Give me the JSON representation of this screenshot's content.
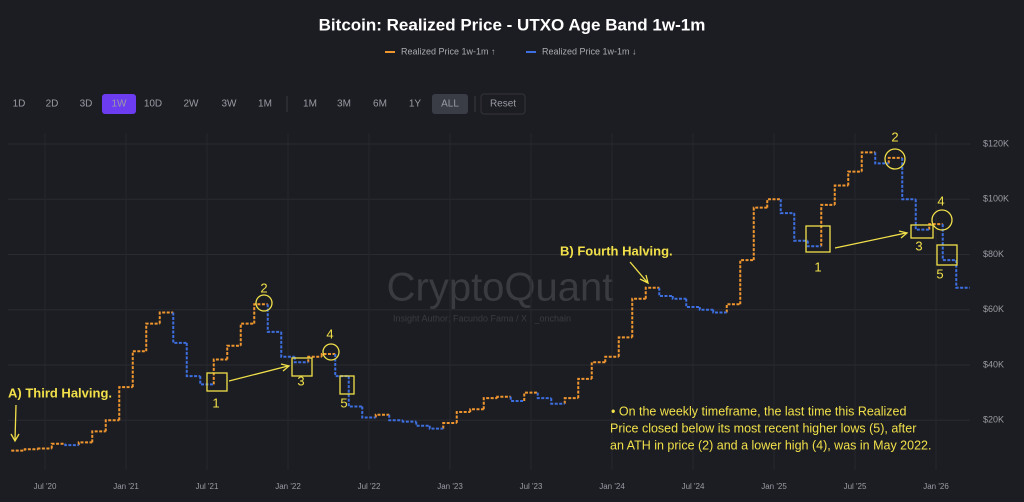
{
  "chart_data": {
    "type": "step",
    "title": "Bitcoin: Realized Price - UTXO Age Band 1w-1m",
    "watermark": "CryptoQuant",
    "author": "Insight Author: Facundo Fama / X : _onchain",
    "toolbar": {
      "intervals": [
        "1D",
        "2D",
        "3D",
        "1W",
        "10D",
        "2W",
        "3W",
        "1M"
      ],
      "ranges": [
        "1M",
        "3M",
        "6M",
        "1Y",
        "ALL"
      ],
      "reset": "Reset"
    },
    "x": [
      "2020-05",
      "2020-06",
      "2020-07",
      "2020-08",
      "2020-09",
      "2020-10",
      "2020-11",
      "2020-12",
      "2021-01",
      "2021-02",
      "2021-03",
      "2021-04",
      "2021-05",
      "2021-06",
      "2021-07",
      "2021-08",
      "2021-09",
      "2021-10",
      "2021-11",
      "2021-12",
      "2022-01",
      "2022-02",
      "2022-03",
      "2022-04",
      "2022-05",
      "2022-06",
      "2022-07",
      "2022-08",
      "2022-09",
      "2022-10",
      "2022-11",
      "2022-12",
      "2023-01",
      "2023-02",
      "2023-03",
      "2023-04",
      "2023-05",
      "2023-06",
      "2023-07",
      "2023-08",
      "2023-09",
      "2023-10",
      "2023-11",
      "2023-12",
      "2024-01",
      "2024-02",
      "2024-03",
      "2024-04",
      "2024-05",
      "2024-06",
      "2024-07",
      "2024-08",
      "2024-09",
      "2024-10",
      "2024-11",
      "2024-12",
      "2025-01",
      "2025-02",
      "2025-03",
      "2025-04",
      "2025-05",
      "2025-06",
      "2025-07",
      "2025-08",
      "2025-09",
      "2025-10",
      "2025-11",
      "2025-12",
      "2026-01",
      "2026-02",
      "2026-03"
    ],
    "series": [
      {
        "name": "Realized Price 1w-1m ↑",
        "color": "#f0962f",
        "values": [
          9000,
          9500,
          9800,
          11500,
          null,
          12000,
          16000,
          20000,
          32000,
          45000,
          55000,
          59000,
          null,
          null,
          null,
          42000,
          47000,
          55000,
          62000,
          null,
          null,
          null,
          43000,
          44000,
          null,
          null,
          null,
          22000,
          null,
          null,
          null,
          null,
          19000,
          23000,
          24000,
          28000,
          28500,
          null,
          30000,
          null,
          null,
          28000,
          35000,
          41000,
          43000,
          50000,
          64000,
          68000,
          null,
          null,
          null,
          null,
          null,
          62000,
          78000,
          97000,
          100000,
          null,
          null,
          null,
          98000,
          105000,
          110000,
          117000,
          null,
          115000,
          null,
          null,
          91000,
          null,
          null
        ]
      },
      {
        "name": "Realized Price 1w-1m ↓",
        "color": "#3d6fe0",
        "values": [
          null,
          null,
          null,
          null,
          11000,
          null,
          null,
          null,
          null,
          null,
          null,
          null,
          48000,
          36000,
          33000,
          null,
          null,
          null,
          null,
          52000,
          43000,
          41000,
          null,
          null,
          36000,
          25000,
          21000,
          null,
          20000,
          19500,
          18000,
          17000,
          null,
          null,
          null,
          null,
          null,
          27000,
          null,
          28000,
          26000,
          null,
          null,
          null,
          null,
          null,
          null,
          null,
          65000,
          64000,
          61000,
          60000,
          59000,
          null,
          null,
          null,
          null,
          95000,
          85000,
          83000,
          null,
          null,
          null,
          null,
          113000,
          null,
          100000,
          89000,
          null,
          78000,
          68000
        ]
      }
    ],
    "ylim": [
      2000,
      124000
    ],
    "yticks": [
      {
        "value": 20000,
        "label": "$20K"
      },
      {
        "value": 40000,
        "label": "$40K"
      },
      {
        "value": 60000,
        "label": "$60K"
      },
      {
        "value": 80000,
        "label": "$80K"
      },
      {
        "value": 100000,
        "label": "$100K"
      },
      {
        "value": 120000,
        "label": "$120K"
      }
    ],
    "xticks": [
      {
        "value": "2020-07",
        "label": "Jul '20"
      },
      {
        "value": "2021-01",
        "label": "Jan '21"
      },
      {
        "value": "2021-07",
        "label": "Jul '21"
      },
      {
        "value": "2022-01",
        "label": "Jan '22"
      },
      {
        "value": "2022-07",
        "label": "Jul '22"
      },
      {
        "value": "2023-01",
        "label": "Jan '23"
      },
      {
        "value": "2023-07",
        "label": "Jul '23"
      },
      {
        "value": "2024-01",
        "label": "Jan '24"
      },
      {
        "value": "2024-07",
        "label": "Jul '24"
      },
      {
        "value": "2025-01",
        "label": "Jan '25"
      },
      {
        "value": "2025-07",
        "label": "Jul '25"
      },
      {
        "value": "2026-01",
        "label": "Jan '26"
      }
    ],
    "grid": true,
    "annotations": [
      "A) Third Halving.",
      "B) Fourth Halving.",
      "1",
      "2",
      "3",
      "4",
      "5",
      "1",
      "2",
      "3",
      "4",
      "5"
    ],
    "note": [
      "• On the weekly timeframe, the last time this Realized",
      "Price closed below its most recent higher lows (5), after",
      "an ATH in price (2) and a lower high (4), was in May 2022."
    ]
  }
}
